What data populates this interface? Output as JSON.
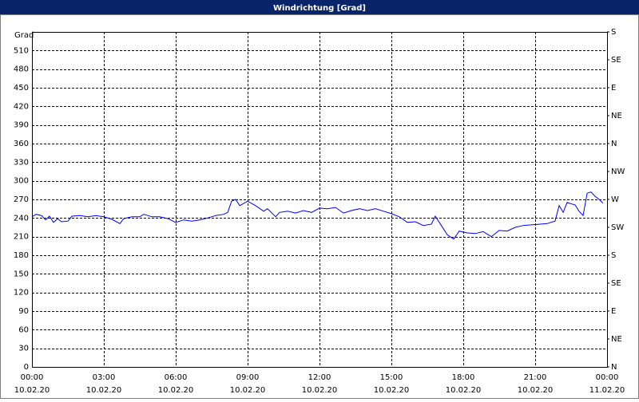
{
  "chart_data": {
    "type": "line",
    "title": "Windrichtung [Grad]",
    "y_label": "Grad",
    "x": [
      0,
      0.17,
      0.4,
      0.57,
      0.73,
      0.9,
      1.07,
      1.23,
      1.5,
      1.67,
      2,
      2.33,
      2.67,
      3,
      3.33,
      3.67,
      3.83,
      4.17,
      4.5,
      4.67,
      5,
      5.33,
      5.67,
      6,
      6.33,
      6.67,
      7,
      7.33,
      7.67,
      8,
      8.17,
      8.33,
      8.5,
      8.67,
      9,
      9.33,
      9.67,
      9.83,
      10.17,
      10.33,
      10.67,
      11,
      11.33,
      11.67,
      12,
      12.33,
      12.67,
      13,
      13.33,
      13.67,
      14,
      14.33,
      14.67,
      15,
      15.33,
      15.67,
      16,
      16.33,
      16.67,
      16.83,
      17,
      17.33,
      17.6,
      17.83,
      18.17,
      18.5,
      18.83,
      19.17,
      19.5,
      19.83,
      20.17,
      20.5,
      20.83,
      21.17,
      21.5,
      21.83,
      22,
      22.17,
      22.33,
      22.67,
      22.83,
      23,
      23.17,
      23.33,
      23.5,
      23.67,
      23.83
    ],
    "series": [
      {
        "color": "#0000ff",
        "values": [
          242,
          246,
          244,
          237,
          243,
          233,
          239,
          234,
          235,
          243,
          244,
          242,
          244,
          242,
          238,
          231,
          239,
          242,
          242,
          246,
          242,
          242,
          239,
          233,
          237,
          235,
          237,
          240,
          244,
          246,
          249,
          267,
          270,
          260,
          267,
          260,
          251,
          255,
          242,
          249,
          251,
          248,
          252,
          249,
          256,
          255,
          257,
          248,
          252,
          255,
          252,
          255,
          251,
          247,
          242,
          233,
          234,
          228,
          230,
          243,
          233,
          213,
          206,
          219,
          216,
          215,
          218,
          210,
          220,
          219,
          225,
          228,
          229,
          230,
          231,
          235,
          260,
          249,
          265,
          261,
          251,
          244,
          280,
          282,
          275,
          270,
          264
        ]
      }
    ],
    "xlim": [
      0,
      24
    ],
    "xticks": [
      {
        "value": 0,
        "label": "00:00"
      },
      {
        "value": 3,
        "label": "03:00"
      },
      {
        "value": 6,
        "label": "06:00"
      },
      {
        "value": 9,
        "label": "09:00"
      },
      {
        "value": 12,
        "label": "12:00"
      },
      {
        "value": 15,
        "label": "15:00"
      },
      {
        "value": 18,
        "label": "18:00"
      },
      {
        "value": 21,
        "label": "21:00"
      },
      {
        "value": 24,
        "label": "00:00"
      }
    ],
    "xtick_dates": [
      "10.02.20",
      "10.02.20",
      "10.02.20",
      "10.02.20",
      "10.02.20",
      "10.02.20",
      "10.02.20",
      "10.02.20",
      "11.02.20"
    ],
    "ylim": [
      0,
      540
    ],
    "yticks": [
      0,
      30,
      60,
      90,
      120,
      150,
      180,
      210,
      240,
      270,
      300,
      330,
      360,
      390,
      420,
      450,
      480,
      510
    ],
    "y2lim": [
      0,
      540
    ],
    "y2ticks": [
      {
        "value": 0,
        "label": "N"
      },
      {
        "value": 45,
        "label": "NE"
      },
      {
        "value": 90,
        "label": "E"
      },
      {
        "value": 135,
        "label": "SE"
      },
      {
        "value": 180,
        "label": "S"
      },
      {
        "value": 225,
        "label": "SW"
      },
      {
        "value": 270,
        "label": "W"
      },
      {
        "value": 315,
        "label": "NW"
      },
      {
        "value": 360,
        "label": "N"
      },
      {
        "value": 405,
        "label": "NE"
      },
      {
        "value": 450,
        "label": "E"
      },
      {
        "value": 495,
        "label": "SE"
      },
      {
        "value": 540,
        "label": "S"
      }
    ],
    "grid": true
  }
}
